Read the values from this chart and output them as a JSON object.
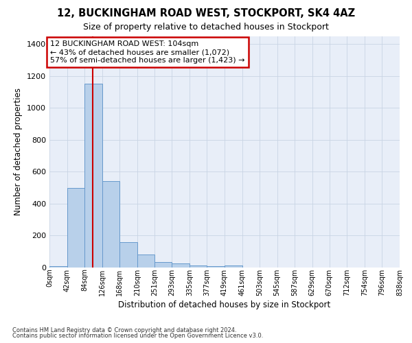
{
  "title1": "12, BUCKINGHAM ROAD WEST, STOCKPORT, SK4 4AZ",
  "title2": "Size of property relative to detached houses in Stockport",
  "xlabel": "Distribution of detached houses by size in Stockport",
  "ylabel": "Number of detached properties",
  "bin_edges": [
    0,
    42,
    84,
    126,
    168,
    210,
    251,
    293,
    335,
    377,
    419,
    461,
    503,
    545,
    587,
    629,
    670,
    712,
    754,
    796,
    838
  ],
  "bar_heights": [
    10,
    500,
    1150,
    540,
    160,
    80,
    35,
    27,
    15,
    10,
    15,
    0,
    0,
    0,
    0,
    0,
    0,
    0,
    0,
    0
  ],
  "bar_color": "#b8d0ea",
  "bar_edge_color": "#6699cc",
  "grid_color": "#c8d4e4",
  "background_color": "#e8eef8",
  "property_size": 104,
  "red_line_color": "#cc0000",
  "annotation_line1": "12 BUCKINGHAM ROAD WEST: 104sqm",
  "annotation_line2": "← 43% of detached houses are smaller (1,072)",
  "annotation_line3": "57% of semi-detached houses are larger (1,423) →",
  "annotation_box_color": "#ffffff",
  "annotation_box_edge": "#cc0000",
  "ylim": [
    0,
    1450
  ],
  "yticks": [
    0,
    200,
    400,
    600,
    800,
    1000,
    1200,
    1400
  ],
  "tick_labels": [
    "0sqm",
    "42sqm",
    "84sqm",
    "126sqm",
    "168sqm",
    "210sqm",
    "251sqm",
    "293sqm",
    "335sqm",
    "377sqm",
    "419sqm",
    "461sqm",
    "503sqm",
    "545sqm",
    "587sqm",
    "629sqm",
    "670sqm",
    "712sqm",
    "754sqm",
    "796sqm",
    "838sqm"
  ],
  "footer1": "Contains HM Land Registry data © Crown copyright and database right 2024.",
  "footer2": "Contains public sector information licensed under the Open Government Licence v3.0."
}
